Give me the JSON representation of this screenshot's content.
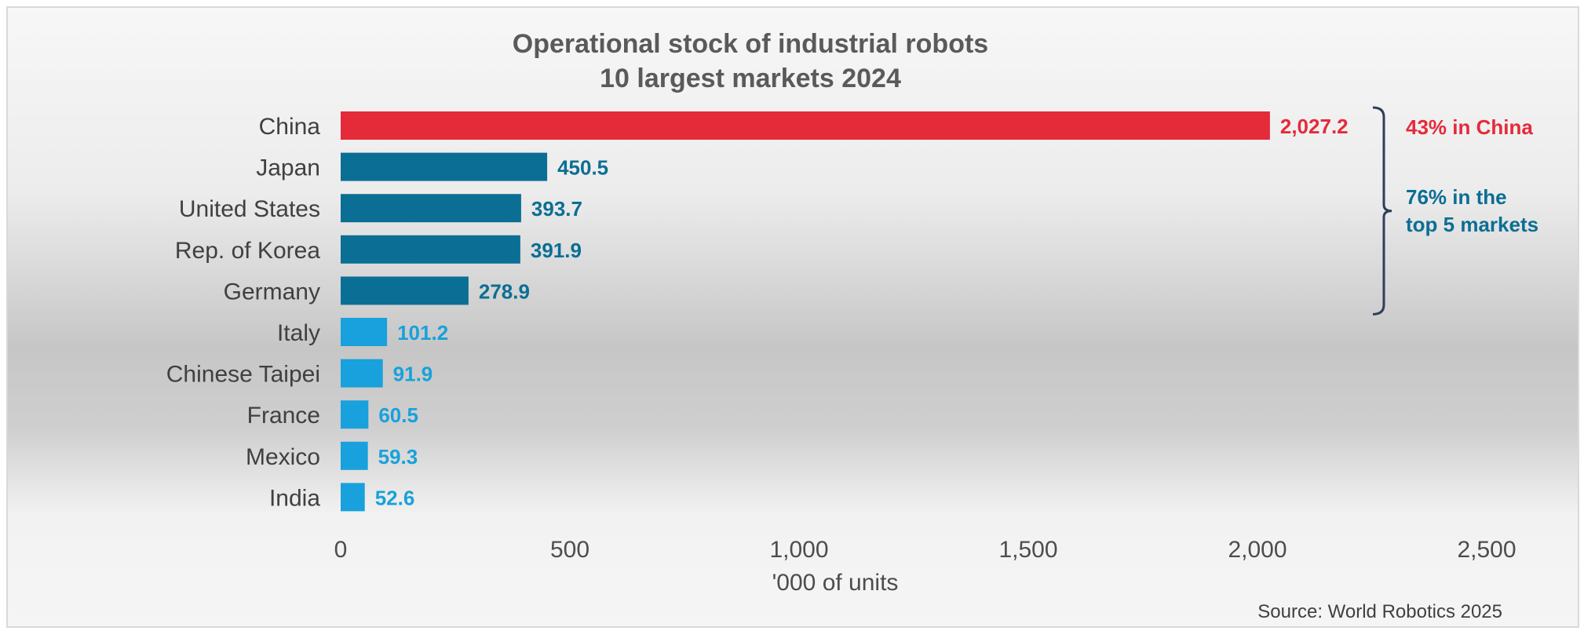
{
  "chart_data": {
    "type": "bar",
    "orientation": "horizontal",
    "title": [
      "Operational stock of industrial robots",
      "10 largest markets 2024"
    ],
    "categories": [
      "China",
      "Japan",
      "United States",
      "Rep. of Korea",
      "Germany",
      "Italy",
      "Chinese Taipei",
      "France",
      "Mexico",
      "India"
    ],
    "values": [
      2027.2,
      450.5,
      393.7,
      391.9,
      278.9,
      101.2,
      91.9,
      60.5,
      59.3,
      52.6
    ],
    "value_labels": [
      "2,027.2",
      "450.5",
      "393.7",
      "391.9",
      "278.9",
      "101.2",
      "91.9",
      "60.5",
      "59.3",
      "52.6"
    ],
    "bar_colors": [
      "#e52a3a",
      "#0b6e94",
      "#0b6e94",
      "#0b6e94",
      "#0b6e94",
      "#18a1dc",
      "#18a1dc",
      "#18a1dc",
      "#18a1dc",
      "#18a1dc"
    ],
    "xlabel": "'000 of units",
    "xlim": [
      0,
      2500
    ],
    "xticks": [
      0,
      500,
      1000,
      1500,
      2000,
      2500
    ],
    "xtick_labels": [
      "0",
      "500",
      "1,000",
      "1,500",
      "2,000",
      "2,500"
    ],
    "grid": false,
    "legend": "none",
    "annotations": [
      {
        "lines": [
          "43% in China"
        ],
        "color": "#e52a3a"
      },
      {
        "lines": [
          "76% in the",
          "top 5 markets"
        ],
        "color": "#0b6e94"
      }
    ],
    "bracket_color": "#2f3e5c",
    "source": "Source: World Robotics 2025"
  }
}
